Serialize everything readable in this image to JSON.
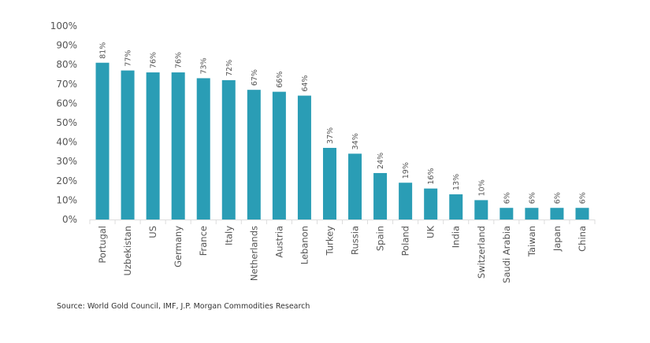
{
  "chart_data": {
    "type": "bar",
    "categories": [
      "Portugal",
      "Uzbekistan",
      "US",
      "Germany",
      "France",
      "Italy",
      "Netherlands",
      "Austria",
      "Lebanon",
      "Turkey",
      "Russia",
      "Spain",
      "Poland",
      "UK",
      "India",
      "Switzerland",
      "Saudi Arabia",
      "Taiwan",
      "Japan",
      "China"
    ],
    "values": [
      81,
      77,
      76,
      76,
      73,
      72,
      67,
      66,
      64,
      37,
      34,
      24,
      19,
      16,
      13,
      10,
      6,
      6,
      6,
      6
    ],
    "data_labels": [
      "81%",
      "77%",
      "76%",
      "76%",
      "73%",
      "72%",
      "67%",
      "66%",
      "64%",
      "37%",
      "34%",
      "24%",
      "19%",
      "16%",
      "13%",
      "10%",
      "6%",
      "6%",
      "6%",
      "6%"
    ],
    "title": "",
    "xlabel": "",
    "ylabel": "",
    "ylim": [
      0,
      100
    ],
    "yticks": [
      "0%",
      "10%",
      "20%",
      "30%",
      "40%",
      "50%",
      "60%",
      "70%",
      "80%",
      "90%",
      "100%"
    ],
    "grid": false,
    "legend": "none",
    "bar_color": "#2a9db5"
  },
  "source": "Source: World Gold Council, IMF, J.P. Morgan Commodities Research"
}
